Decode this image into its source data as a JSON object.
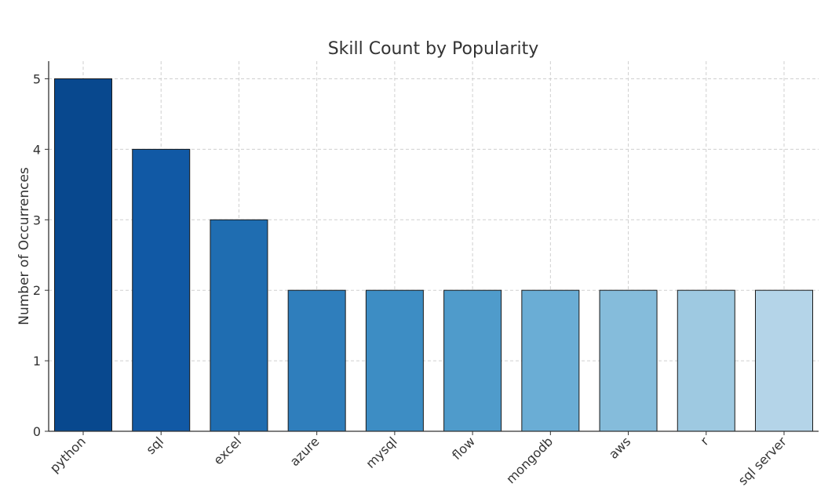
{
  "chart_data": {
    "type": "bar",
    "title": "Skill Count by Popularity",
    "xlabel": "",
    "ylabel": "Number of Occurrences",
    "categories": [
      "python",
      "sql",
      "excel",
      "azure",
      "mysql",
      "flow",
      "mongodb",
      "aws",
      "r",
      "sql server"
    ],
    "values": [
      5,
      4,
      3,
      2,
      2,
      2,
      2,
      2,
      2,
      2
    ],
    "ylim": [
      0,
      5.25
    ],
    "yticks": [
      "0",
      "1",
      "2",
      "3",
      "4",
      "5"
    ],
    "colors": [
      "#08488e",
      "#1159a5",
      "#1f6db1",
      "#2f7ebc",
      "#3d8dc4",
      "#4f9bcb",
      "#6aadd5",
      "#85bcdb",
      "#9ec9e1",
      "#b4d4e8"
    ],
    "grid": true,
    "legend": "none"
  }
}
